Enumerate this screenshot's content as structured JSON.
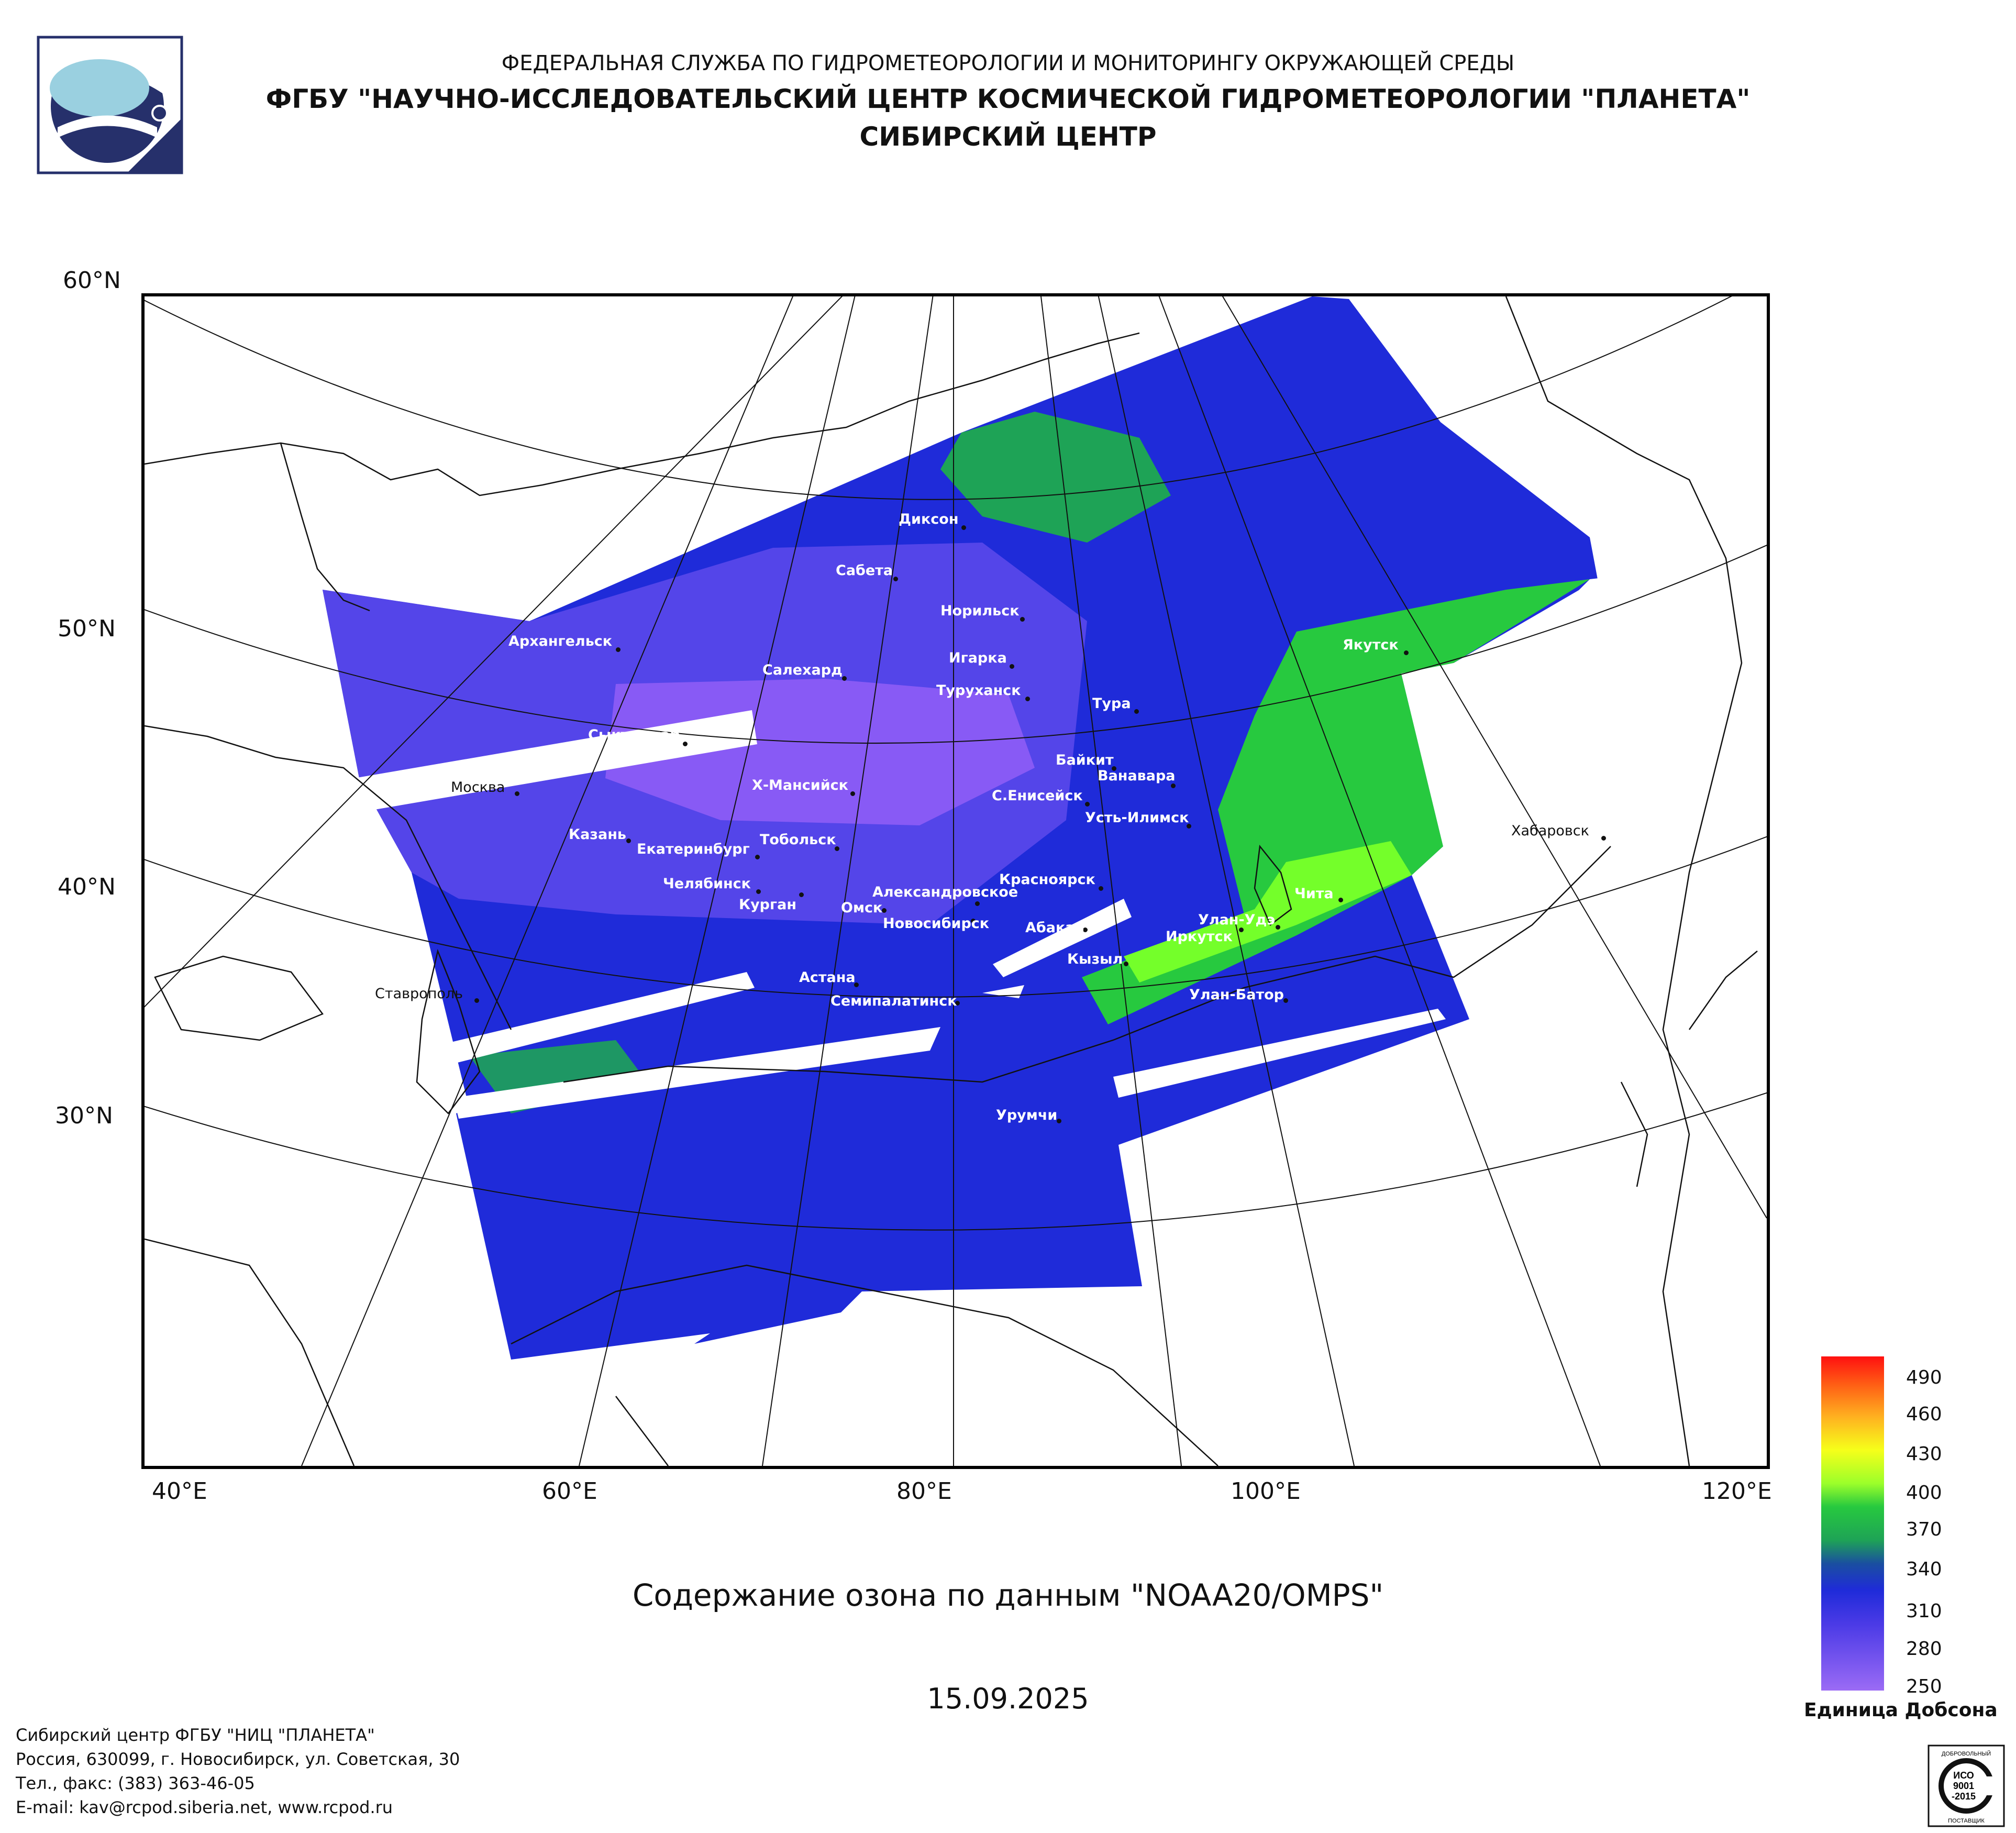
{
  "header": {
    "line1": "ФЕДЕРАЛЬНАЯ СЛУЖБА ПО ГИДРОМЕТЕОРОЛОГИИ И МОНИТОРИНГУ ОКРУЖАЮЩЕЙ СРЕДЫ",
    "line2": "ФГБУ \"НАУЧНО-ИССЛЕДОВАТЕЛЬСКИЙ ЦЕНТР КОСМИЧЕСКОЙ ГИДРОМЕТЕОРОЛОГИИ \"ПЛАНЕТА\"",
    "line3": "СИБИРСКИЙ ЦЕНТР"
  },
  "map": {
    "lat_labels": [
      "60°N",
      "50°N",
      "40°N",
      "30°N"
    ],
    "lon_labels": [
      "40°E",
      "60°E",
      "80°E",
      "100°E",
      "120°E"
    ],
    "colors": {
      "low": "#8b5cf6",
      "mid": "#1f2bd9",
      "high": "#27c93f",
      "peak": "#74ff2a"
    },
    "cities": [
      "Диксон",
      "Сабета",
      "Норильск",
      "Салехард",
      "Игарка",
      "Туруханск",
      "Тура",
      "Якутск",
      "Архангельск",
      "Сыктывкар",
      "Байкит",
      "Ванавара",
      "Х-Мансийск",
      "С.Енисейск",
      "Усть-Илимск",
      "Москва",
      "Казань",
      "Екатеринбург",
      "Тобольск",
      "Хабаровск",
      "Челябинск",
      "Курган",
      "Красноярск",
      "Александровское",
      "Омск",
      "Чита",
      "Новосибирск",
      "Абакан",
      "Улан-Удэ",
      "Иркутск",
      "Кызыл",
      "Астана",
      "Семипалатинск",
      "Улан-Батор",
      "Ставрополь",
      "Урумчи"
    ]
  },
  "subtitle": "Содержание озона по данным \"NOAA20/OMPS\"",
  "date": "15.09.2025",
  "legend": {
    "values": [
      "490",
      "460",
      "430",
      "400",
      "370",
      "340",
      "310",
      "280",
      "250"
    ],
    "unit": "Единица Добсона"
  },
  "footer": {
    "line1": "Сибирский центр ФГБУ \"НИЦ \"ПЛАНЕТА\"",
    "line2": "Россия, 630099, г. Новосибирск, ул. Советская, 30",
    "line3": "Тел., факс: (383) 363-46-05",
    "line4": "E-mail: kav@rcpod.siberia.net, www.rcpod.ru"
  },
  "badge": {
    "top": "ДОБРОВОЛЬНЫЙ",
    "l1": "ИСО",
    "l2": "9001",
    "l3": "-2015",
    "bottom": "ПОСТАВЩИК"
  }
}
